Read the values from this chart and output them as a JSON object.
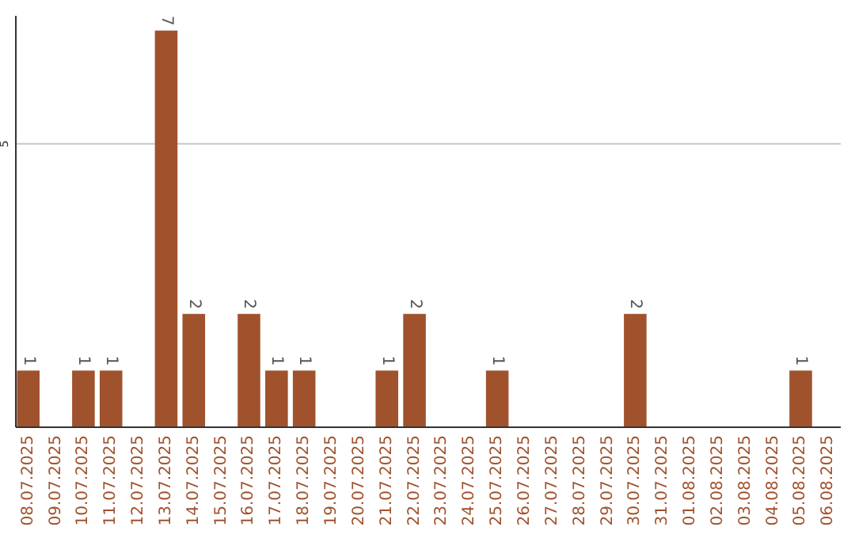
{
  "chart_data": {
    "type": "bar",
    "categories": [
      "08.07.2025",
      "09.07.2025",
      "10.07.2025",
      "11.07.2025",
      "12.07.2025",
      "13.07.2025",
      "14.07.2025",
      "15.07.2025",
      "16.07.2025",
      "17.07.2025",
      "18.07.2025",
      "19.07.2025",
      "20.07.2025",
      "21.07.2025",
      "22.07.2025",
      "23.07.2025",
      "24.07.2025",
      "25.07.2025",
      "26.07.2025",
      "27.07.2025",
      "28.07.2025",
      "29.07.2025",
      "30.07.2025",
      "31.07.2025",
      "01.08.2025",
      "02.08.2025",
      "03.08.2025",
      "04.08.2025",
      "05.08.2025",
      "06.08.2025"
    ],
    "values": [
      1,
      0,
      1,
      1,
      0,
      7,
      2,
      0,
      2,
      1,
      1,
      0,
      0,
      1,
      2,
      0,
      0,
      1,
      0,
      0,
      0,
      0,
      2,
      0,
      0,
      0,
      0,
      0,
      1,
      0
    ],
    "value_labels": [
      "1",
      null,
      "1",
      "1",
      null,
      "7",
      "2",
      null,
      "2",
      "1",
      "1",
      null,
      null,
      "1",
      "2",
      null,
      null,
      "1",
      null,
      null,
      null,
      null,
      "2",
      null,
      null,
      null,
      null,
      null,
      "1",
      null
    ],
    "color": "#a0522d",
    "ylim": [
      0,
      7.26
    ],
    "yticks": [
      5
    ],
    "grid": "y"
  }
}
